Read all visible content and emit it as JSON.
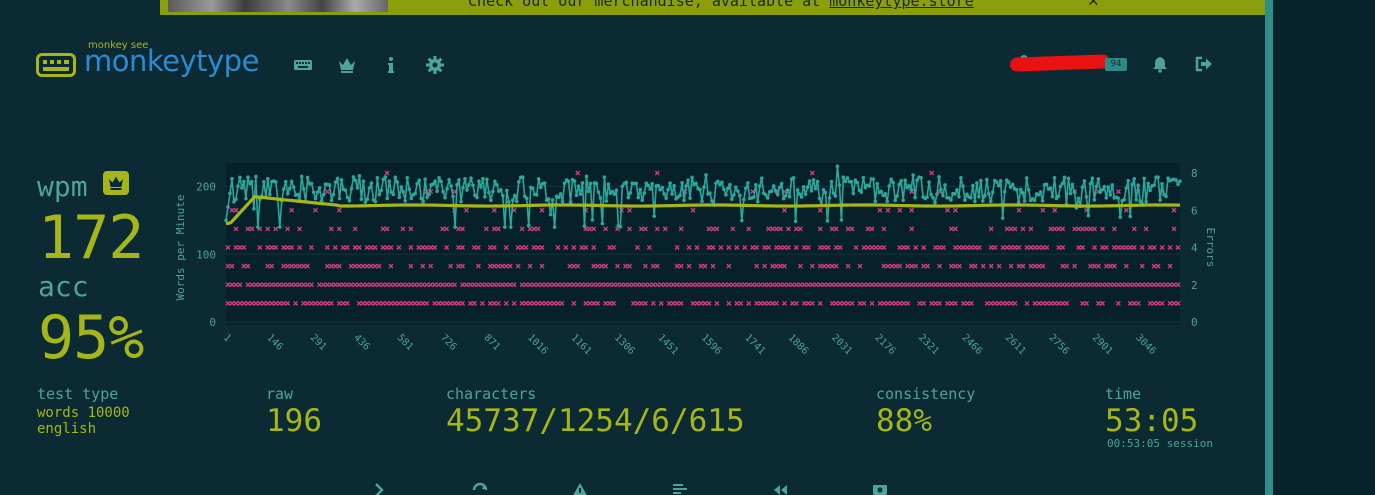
{
  "banner": {
    "text_prefix": "Check out our merchandise, available at ",
    "link": "monkeytype.store",
    "close_icon": "close-icon"
  },
  "header": {
    "logo_subtitle": "monkey see",
    "logo_title": "monkeytype",
    "nav_icons": [
      "keyboard-icon",
      "crown-icon",
      "info-icon",
      "gear-icon"
    ],
    "account": {
      "user_icon": "user-icon",
      "level": "94",
      "username": ""
    },
    "notifications_icon": "bell-icon",
    "logout_icon": "sign-out-icon"
  },
  "result": {
    "wpm_label": "wpm",
    "wpm": "172",
    "acc_label": "acc",
    "acc": "95%",
    "test_type_label": "test type",
    "test_type_mode": "words 10000",
    "test_type_language": "english",
    "raw_label": "raw",
    "raw": "196",
    "characters_label": "characters",
    "characters": "45737/1254/6/615",
    "consistency_label": "consistency",
    "consistency": "88%",
    "time_label": "time",
    "time": "53:05",
    "session": "00:53:05 session"
  },
  "bottom_buttons": [
    "next-test-icon",
    "restart-icon",
    "warning-icon",
    "words-history-icon",
    "replay-icon",
    "screenshot-icon"
  ],
  "colors": {
    "background": "#0b2a33",
    "main": "#a6b61a",
    "sub": "#4fa39b",
    "logo_text": "#2d8ad2",
    "raw_line": "#2ba79d",
    "errors": "#d33c86"
  },
  "chart_data": {
    "type": "line",
    "ylabel": "Words per Minute",
    "y2label": "Errors",
    "ylim": [
      0,
      220
    ],
    "y2lim": [
      0,
      8
    ],
    "yticks": [
      "0",
      "100",
      "200"
    ],
    "y2ticks": [
      "0",
      "2",
      "4",
      "6",
      "8"
    ],
    "x_ticks": [
      "1",
      "146",
      "291",
      "436",
      "581",
      "726",
      "871",
      "1016",
      "1161",
      "1306",
      "1451",
      "1596",
      "1741",
      "1886",
      "2031",
      "2176",
      "2321",
      "2466",
      "2611",
      "2756",
      "2901",
      "3046"
    ],
    "xlim": [
      1,
      3185
    ],
    "series": [
      {
        "name": "wpm",
        "color": "#a6b61a",
        "start": 145,
        "peak": 185,
        "plateau": 172
      },
      {
        "name": "raw",
        "color": "#2ba79d",
        "mean": 196,
        "min": 140,
        "max": 230
      },
      {
        "name": "errors",
        "color": "#d33c86",
        "levels": [
          1,
          2,
          3,
          4,
          5,
          6,
          7,
          8
        ]
      }
    ]
  }
}
